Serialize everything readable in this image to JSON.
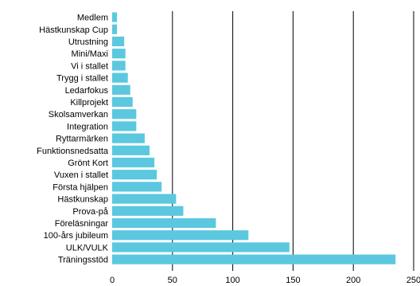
{
  "chart_data": {
    "type": "bar",
    "orientation": "horizontal",
    "categories": [
      "Medlem",
      "Hästkunskap Cup",
      "Utrustning",
      "Mini/Maxi",
      "Vi i stallet",
      "Trygg i stallet",
      "Ledarfokus",
      "Killprojekt",
      "Skolsamverkan",
      "Integration",
      "Ryttarmärken",
      "Funktionsnedsatta",
      "Grönt Kort",
      "Vuxen i stallet",
      "Första hjälpen",
      "Hästkunskap",
      "Prova-på",
      "Föreläsningar",
      "100-års jubileum",
      "ULK/VULK",
      "Träningsstöd"
    ],
    "values": [
      4,
      4,
      10,
      11,
      11,
      13,
      15,
      17,
      20,
      20,
      27,
      31,
      35,
      37,
      41,
      53,
      59,
      86,
      113,
      147,
      235
    ],
    "xlim": [
      0,
      250
    ],
    "xticks": [
      0,
      50,
      100,
      150,
      200,
      250
    ],
    "xtick_labels": [
      "0",
      "50",
      "100",
      "150",
      "200",
      "250"
    ],
    "bar_color": "#5bc8df",
    "grid": "vertical",
    "grid_color": "#000000",
    "title": "",
    "xlabel": "",
    "ylabel": ""
  }
}
